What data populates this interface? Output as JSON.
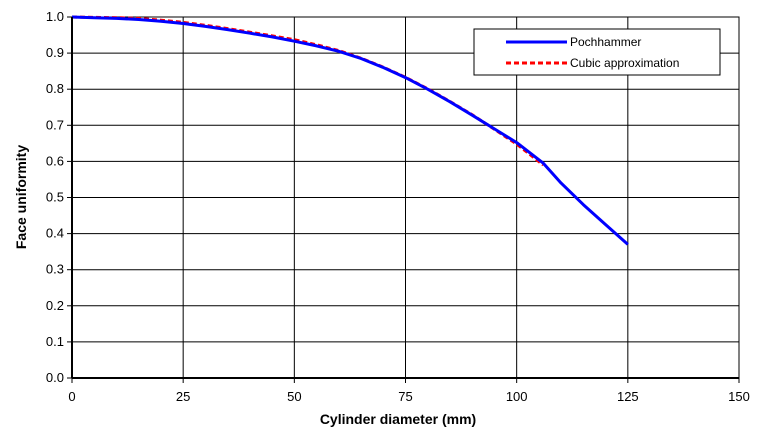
{
  "chart_data": {
    "type": "line",
    "title": "",
    "xlabel": "Cylinder diameter (mm)",
    "ylabel": "Face uniformity",
    "xlim": [
      0,
      150
    ],
    "ylim": [
      0.0,
      1.0
    ],
    "xticks": [
      0,
      25,
      50,
      75,
      100,
      125,
      150
    ],
    "xtick_labels": [
      "0",
      "25",
      "50",
      "75",
      "100",
      "125",
      "150"
    ],
    "yticks": [
      0.0,
      0.1,
      0.2,
      0.3,
      0.4,
      0.5,
      0.6,
      0.7,
      0.8,
      0.9,
      1.0
    ],
    "ytick_labels": [
      "0.0",
      "0.1",
      "0.2",
      "0.3",
      "0.4",
      "0.5",
      "0.6",
      "0.7",
      "0.8",
      "0.9",
      "1.0"
    ],
    "grid": true,
    "legend_position": "upper right",
    "series": [
      {
        "name": "Pochhammer",
        "color": "#0000ff",
        "style": "solid",
        "x": [
          0,
          5,
          10,
          15,
          20,
          25,
          30,
          35,
          40,
          45,
          50,
          55,
          60,
          65,
          70,
          75,
          80,
          85,
          90,
          95,
          100,
          106,
          110,
          115,
          120,
          125
        ],
        "y": [
          1.0,
          0.998,
          0.996,
          0.993,
          0.988,
          0.982,
          0.974,
          0.965,
          0.955,
          0.945,
          0.933,
          0.92,
          0.905,
          0.885,
          0.86,
          0.832,
          0.8,
          0.765,
          0.728,
          0.69,
          0.652,
          0.595,
          0.54,
          0.48,
          0.425,
          0.37
        ]
      },
      {
        "name": "Cubic approximation",
        "color": "#ff0000",
        "style": "dashed",
        "x": [
          0,
          5,
          10,
          15,
          20,
          25,
          30,
          35,
          40,
          45,
          50,
          55,
          60,
          65,
          70,
          75,
          80,
          85,
          90,
          95,
          100,
          106
        ],
        "y": [
          1.0,
          0.999,
          0.998,
          0.996,
          0.991,
          0.985,
          0.977,
          0.968,
          0.958,
          0.948,
          0.937,
          0.923,
          0.907,
          0.886,
          0.861,
          0.833,
          0.801,
          0.766,
          0.729,
          0.689,
          0.648,
          0.59
        ]
      }
    ]
  }
}
